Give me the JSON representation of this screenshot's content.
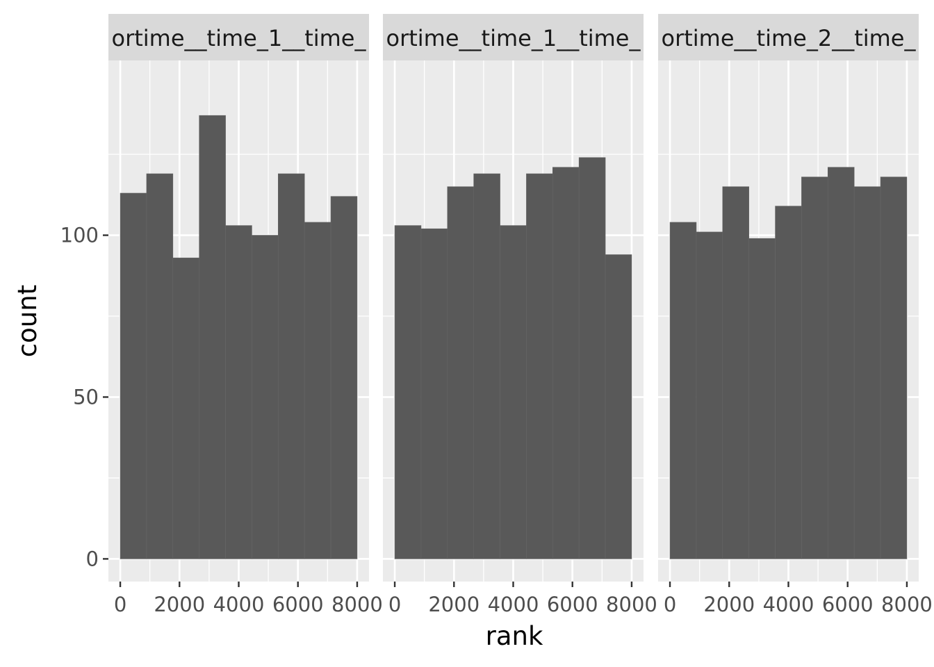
{
  "chart_data": {
    "type": "bar",
    "subtype": "faceted-histogram",
    "xlabel": "rank",
    "ylabel": "count",
    "ylim": [
      -7,
      154
    ],
    "xlim": [
      -400,
      8400
    ],
    "y_ticks": [
      0,
      50,
      100
    ],
    "y_minor_ticks": [
      25,
      75,
      125
    ],
    "x_ticks": [
      0,
      2000,
      4000,
      6000,
      8000
    ],
    "x_tick_labels": [
      "0",
      "2000",
      "4000",
      "6000",
      "8000"
    ],
    "x_minor_ticks": [
      1000,
      3000,
      5000,
      7000
    ],
    "bin_edges": [
      0,
      889,
      1778,
      2667,
      3556,
      4444,
      5333,
      6222,
      7111,
      8000
    ],
    "bar_color": "#595959",
    "panel_background": "#ebebeb",
    "strip_background": "#d9d9d9",
    "grid_color": "#ffffff",
    "grid": true,
    "panels": [
      {
        "strip_label": "ortime__time_1__time_",
        "values": [
          113,
          119,
          93,
          137,
          103,
          100,
          119,
          104,
          112
        ]
      },
      {
        "strip_label": "ortime__time_1__time_",
        "values": [
          103,
          102,
          115,
          119,
          103,
          119,
          121,
          124,
          94
        ]
      },
      {
        "strip_label": "ortime__time_2__time_",
        "values": [
          104,
          101,
          115,
          99,
          109,
          118,
          121,
          115,
          118
        ]
      }
    ]
  }
}
